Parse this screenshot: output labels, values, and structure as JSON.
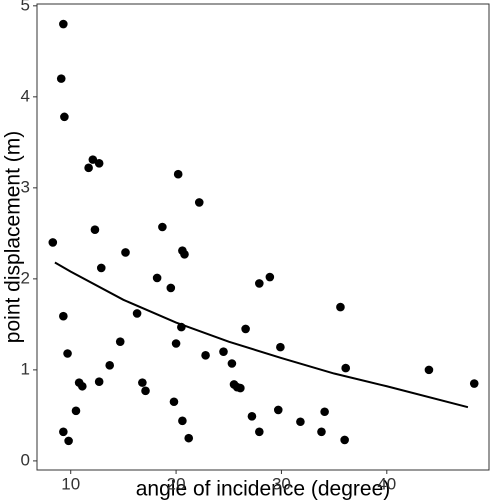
{
  "chart_data": {
    "type": "scatter",
    "x_label": "angle of incidence (degree)",
    "y_label": "point displacement (m)",
    "x": [
      8.3,
      9.1,
      9.3,
      9.4,
      9.3,
      9.3,
      9.8,
      9.7,
      10.5,
      10.8,
      11.1,
      11.7,
      12.1,
      12.3,
      12.7,
      12.7,
      12.9,
      13.7,
      14.7,
      15.2,
      16.3,
      16.8,
      17.1,
      18.2,
      18.7,
      19.5,
      19.8,
      20.0,
      20.2,
      20.5,
      20.6,
      20.6,
      20.8,
      21.2,
      22.2,
      22.8,
      24.5,
      25.3,
      25.5,
      25.8,
      26.1,
      26.6,
      27.2,
      27.9,
      27.9,
      28.9,
      29.7,
      29.9,
      31.8,
      33.8,
      34.1,
      35.6,
      36.0,
      36.1,
      44.0,
      48.3
    ],
    "values": [
      2.4,
      4.2,
      4.8,
      3.78,
      1.59,
      0.32,
      0.22,
      1.18,
      0.55,
      0.86,
      0.82,
      3.22,
      3.31,
      2.54,
      3.27,
      0.87,
      2.12,
      1.05,
      1.31,
      2.29,
      1.62,
      0.86,
      0.77,
      2.01,
      2.57,
      1.9,
      0.65,
      1.29,
      3.15,
      1.47,
      0.44,
      2.31,
      2.27,
      0.25,
      2.84,
      1.16,
      1.2,
      1.07,
      0.84,
      0.81,
      0.8,
      1.45,
      0.49,
      0.32,
      1.95,
      2.02,
      0.56,
      1.25,
      0.43,
      0.32,
      0.54,
      1.69,
      0.23,
      1.02,
      1.0,
      0.85
    ],
    "color": "#000000",
    "fit": {
      "x": [
        8.5,
        10,
        15,
        20,
        25,
        30,
        35,
        40,
        47.7
      ],
      "y": [
        2.18,
        2.08,
        1.77,
        1.52,
        1.31,
        1.13,
        0.96,
        0.82,
        0.59
      ],
      "color": "#000000"
    },
    "xlim": [
      6.8,
      49.7
    ],
    "ylim": [
      -0.1,
      5.02
    ],
    "xticks": [
      10,
      20,
      30,
      40
    ],
    "yticks": [
      0,
      1,
      2,
      3,
      4,
      5
    ],
    "grid": false
  }
}
